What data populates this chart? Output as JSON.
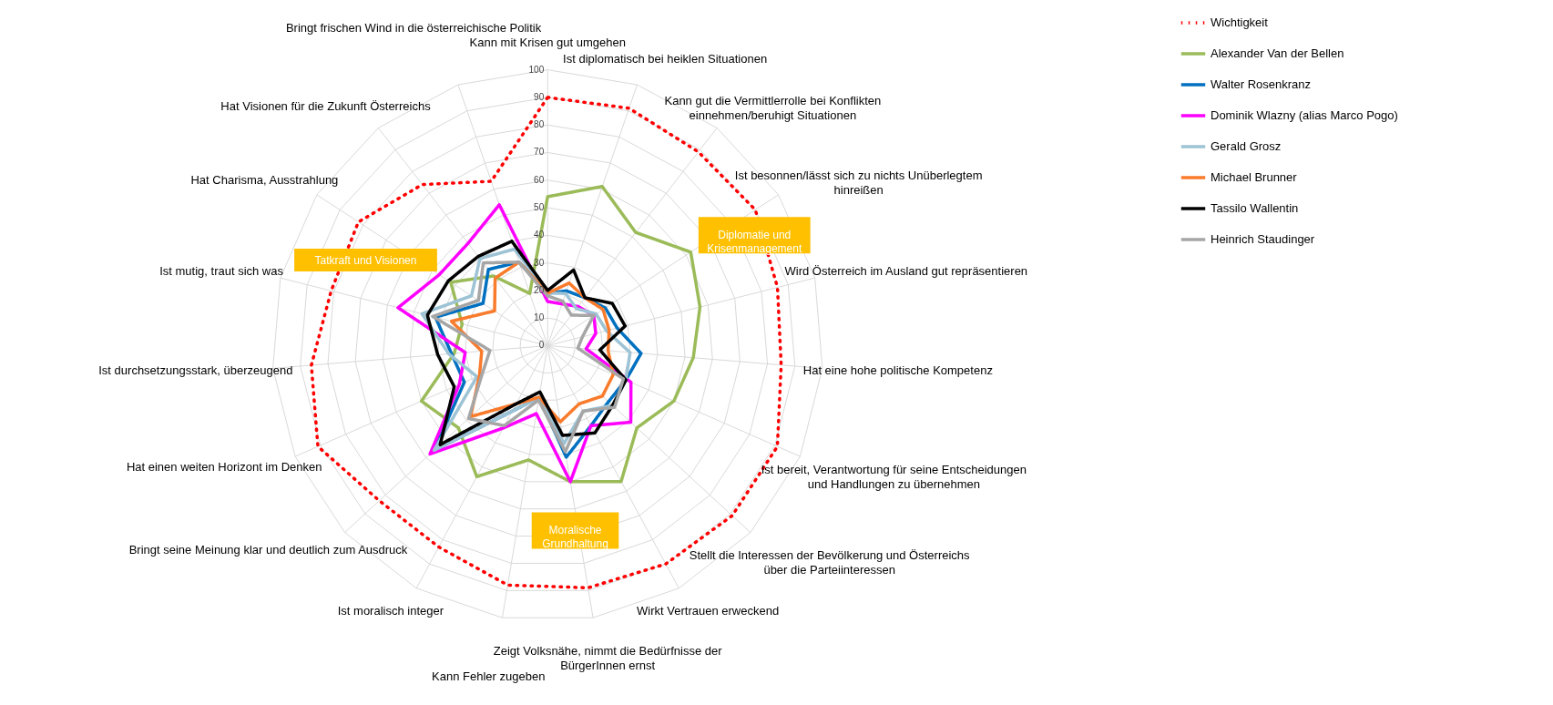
{
  "chart_data": {
    "type": "radar",
    "categories": [
      "Kann mit Krisen gut umgehen",
      "Ist diplomatisch bei heiklen Situationen",
      "Kann gut die Vermittlerrolle bei Konflikten einnehmen/beruhigt Situationen",
      "Ist besonnen/lässt sich zu nichts Unüberlegtem hinreißen",
      "Wird Österreich im Ausland gut repräsentieren",
      "Hat eine hohe politische Kompetenz",
      "Ist bereit, Verantwortung für seine Entscheidungen und Handlungen zu übernehmen",
      "Stellt die Interessen der Bevölkerung und Österreichs über die Parteiinteressen",
      "Wirkt Vertrauen erweckend",
      "Zeigt Volksnähe, nimmt die Bedürfnisse der BürgerInnen ernst",
      "Kann Fehler zugeben",
      "Ist moralisch integer",
      "Bringt seine Meinung klar und deutlich zum Ausdruck",
      "Hat einen weiten Horizont im Denken",
      "Ist durchsetzungsstark, überzeugend",
      "Ist mutig, traut sich was",
      "Hat Charisma, Ausstrahlung",
      "Hat Visionen für die Zukunft Österreichs",
      "Bringt frischen Wind in die österreichische Politik"
    ],
    "series": [
      {
        "name": "Wichtigkeit",
        "color": "#ff0000",
        "line_style": "dotted",
        "values": [
          90,
          91,
          89,
          90,
          86,
          85,
          91,
          91,
          90,
          89,
          88,
          83,
          83,
          91,
          86,
          81,
          82,
          74,
          63
        ]
      },
      {
        "name": "Alexander Van der Bellen",
        "color": "#9bbb59",
        "values": [
          54,
          61,
          52,
          62,
          57,
          53,
          50,
          44,
          56,
          50,
          42,
          54,
          44,
          50,
          34,
          32,
          42,
          32,
          20
        ]
      },
      {
        "name": "Walter Rosenkranz",
        "color": "#0070c0",
        "values": [
          19,
          21,
          22,
          25,
          26,
          34,
          31,
          30,
          33,
          41,
          19,
          27,
          56,
          33,
          35,
          42,
          28,
          35,
          32
        ]
      },
      {
        "name": "Dominik Wlazny (alias Marco Pogo)",
        "color": "#ff00ff",
        "values": [
          16,
          16,
          18,
          20,
          18,
          14,
          33,
          41,
          33,
          50,
          25,
          34,
          58,
          35,
          30,
          56,
          47,
          47,
          54
        ]
      },
      {
        "name": "Gerald Grosz",
        "color": "#9dc3d5",
        "values": [
          19,
          20,
          17,
          21,
          22,
          30,
          31,
          32,
          27,
          36,
          19,
          27,
          56,
          28,
          36,
          47,
          33,
          40,
          37
        ]
      },
      {
        "name": "Michael Brunner",
        "color": "#f97b2c",
        "values": [
          19,
          24,
          22,
          24,
          23,
          22,
          26,
          27,
          24,
          28,
          19,
          24,
          38,
          27,
          24,
          36,
          23,
          31,
          32
        ]
      },
      {
        "name": "Tassilo Wallentin",
        "color": "#000000",
        "values": [
          20,
          29,
          22,
          28,
          29,
          19,
          31,
          32,
          36,
          33,
          17,
          24,
          53,
          37,
          40,
          45,
          43,
          41,
          40
        ]
      },
      {
        "name": "Heinrich Staudinger",
        "color": "#a6a6a6",
        "values": [
          18,
          17,
          14,
          20,
          13,
          11,
          30,
          33,
          27,
          39,
          20,
          33,
          39,
          26,
          21,
          43,
          30,
          38,
          32
        ]
      }
    ],
    "ylim": [
      0,
      100
    ],
    "yticks": [
      0,
      10,
      20,
      30,
      40,
      50,
      60,
      70,
      80,
      90,
      100
    ],
    "grid": true,
    "legend": "right",
    "marker": "none",
    "annotations": [
      "Diplomatie und Krisenmanagement",
      "Tatkraft und Visionen",
      "Moralische Grundhaltung"
    ]
  }
}
